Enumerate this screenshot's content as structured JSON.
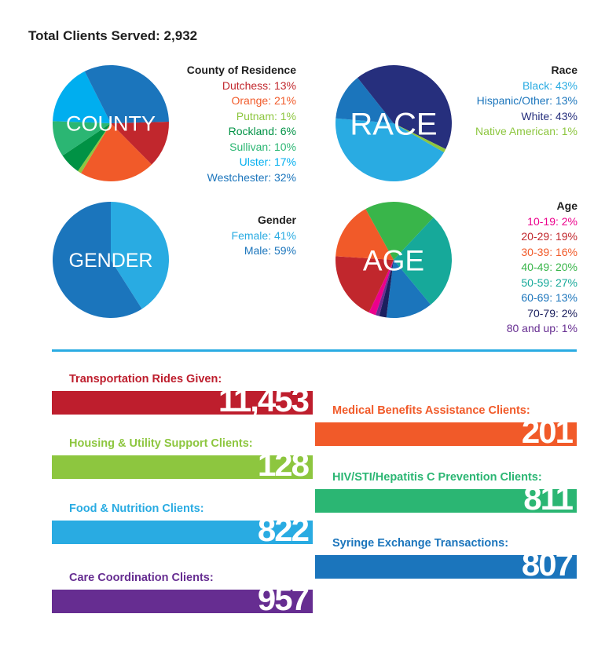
{
  "header": {
    "total": "Total Clients Served: 2,932"
  },
  "chart_data": [
    {
      "type": "pie",
      "center_label": "COUNTY",
      "legend_title": "County of Residence",
      "slices": [
        {
          "label": "Dutchess: 13%",
          "name": "Dutchess",
          "value": 13,
          "color": "#c1272d"
        },
        {
          "label": "Orange: 21%",
          "name": "Orange",
          "value": 21,
          "color": "#f15a29"
        },
        {
          "label": "Putnam: 1%",
          "name": "Putnam",
          "value": 1,
          "color": "#8dc63f"
        },
        {
          "label": "Rockland: 6%",
          "name": "Rockland",
          "value": 6,
          "color": "#009245"
        },
        {
          "label": "Sullivan: 10%",
          "name": "Sullivan",
          "value": 10,
          "color": "#2bb673"
        },
        {
          "label": "Ulster: 17%",
          "name": "Ulster",
          "value": 17,
          "color": "#00aeef"
        },
        {
          "label": "Westchester: 32%",
          "name": "Westchester",
          "value": 32,
          "color": "#1b75bc"
        }
      ]
    },
    {
      "type": "pie",
      "center_label": "RACE",
      "legend_title": "Race",
      "slices": [
        {
          "label": "Black: 43%",
          "name": "Black",
          "value": 43,
          "color": "#29abe2"
        },
        {
          "label": "Hispanic/Other: 13%",
          "name": "Hispanic/Other",
          "value": 13,
          "color": "#1b75bc"
        },
        {
          "label": "White: 43%",
          "name": "White",
          "value": 43,
          "color": "#262f7d"
        },
        {
          "label": "Native American: 1%",
          "name": "Native American",
          "value": 1,
          "color": "#8dc63f"
        }
      ]
    },
    {
      "type": "pie",
      "center_label": "GENDER",
      "legend_title": "Gender",
      "slices": [
        {
          "label": "Female: 41%",
          "name": "Female",
          "value": 41,
          "color": "#29abe2"
        },
        {
          "label": "Male: 59%",
          "name": "Male",
          "value": 59,
          "color": "#1b75bc"
        }
      ]
    },
    {
      "type": "pie",
      "center_label": "AGE",
      "legend_title": "Age",
      "slices": [
        {
          "label": "10-19: 2%",
          "name": "10-19",
          "value": 2,
          "color": "#ec008c"
        },
        {
          "label": "20-29: 19%",
          "name": "20-29",
          "value": 19,
          "color": "#c1272d"
        },
        {
          "label": "30-39: 16%",
          "name": "30-39",
          "value": 16,
          "color": "#f15a29"
        },
        {
          "label": "40-49: 20%",
          "name": "40-49",
          "value": 20,
          "color": "#39b54a"
        },
        {
          "label": "50-59: 27%",
          "name": "50-59",
          "value": 27,
          "color": "#16a99a"
        },
        {
          "label": "60-69: 13%",
          "name": "60-69",
          "value": 13,
          "color": "#1b75bc"
        },
        {
          "label": "70-79: 2%",
          "name": "70-79",
          "value": 2,
          "color": "#1b1f5e"
        },
        {
          "label": "80 and up: 1%",
          "name": "80 and up",
          "value": 1,
          "color": "#662d91"
        }
      ]
    }
  ],
  "stats": [
    {
      "label": "Transportation Rides Given:",
      "value": "11,453",
      "color": "#be1e2d"
    },
    {
      "label": "Medical Benefits Assistance Clients:",
      "value": "201",
      "color": "#f15a29"
    },
    {
      "label": "Housing & Utility Support Clients:",
      "value": "128",
      "color": "#8dc63f"
    },
    {
      "label": "HIV/STI/Hepatitis C Prevention Clients:",
      "value": "811",
      "color": "#2bb673"
    },
    {
      "label": "Food & Nutrition Clients:",
      "value": "822",
      "color": "#29abe2"
    },
    {
      "label": "Syringe Exchange Transactions:",
      "value": "807",
      "color": "#1b75bc"
    },
    {
      "label": "Care Coordination Clients:",
      "value": "957",
      "color": "#662d91"
    }
  ]
}
